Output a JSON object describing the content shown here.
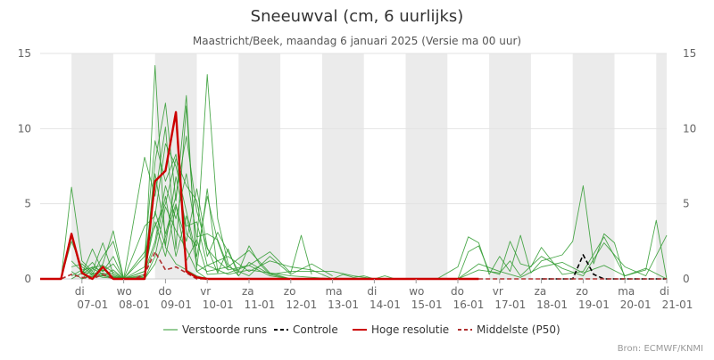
{
  "chart_data": {
    "type": "line",
    "title": "Sneeuwval (cm, 6 uurlijks)",
    "subtitle": "Maastricht/Beek, maandag 6 januari 2025 (Versie ma 00 uur)",
    "source": "Bron: ECMWF/KNMI",
    "ylim": [
      0,
      15
    ],
    "yticks": [
      0,
      5,
      10,
      15
    ],
    "x_unit": "days since 2025-01-06 00:00",
    "xlim": [
      0,
      15
    ],
    "xticks": [
      {
        "x": 1,
        "day": "di",
        "date": "07-01"
      },
      {
        "x": 2,
        "day": "wo",
        "date": "08-01"
      },
      {
        "x": 3,
        "day": "do",
        "date": "09-01"
      },
      {
        "x": 4,
        "day": "vr",
        "date": "10-01"
      },
      {
        "x": 5,
        "day": "za",
        "date": "11-01"
      },
      {
        "x": 6,
        "day": "zo",
        "date": "12-01"
      },
      {
        "x": 7,
        "day": "ma",
        "date": "13-01"
      },
      {
        "x": 8,
        "day": "di",
        "date": "14-01"
      },
      {
        "x": 9,
        "day": "wo",
        "date": "15-01"
      },
      {
        "x": 10,
        "day": "do",
        "date": "16-01"
      },
      {
        "x": 11,
        "day": "vr",
        "date": "17-01"
      },
      {
        "x": 12,
        "day": "za",
        "date": "18-01"
      },
      {
        "x": 13,
        "day": "zo",
        "date": "19-01"
      },
      {
        "x": 14,
        "day": "ma",
        "date": "20-01"
      },
      {
        "x": 15,
        "day": "di",
        "date": "21-01"
      }
    ],
    "shaded_bands": [
      [
        0.75,
        1.75
      ],
      [
        2.75,
        3.75
      ],
      [
        4.75,
        5.75
      ],
      [
        6.75,
        7.75
      ],
      [
        8.75,
        9.75
      ],
      [
        10.75,
        11.75
      ],
      [
        12.75,
        13.75
      ],
      [
        14.75,
        15
      ]
    ],
    "legend": [
      {
        "label": "Verstoorde runs",
        "color": "#2e9a2e",
        "style": "solid-thin"
      },
      {
        "label": "Controle",
        "color": "#000000",
        "style": "dashed"
      },
      {
        "label": "Hoge resolutie",
        "color": "#cc0000",
        "style": "solid-thick"
      },
      {
        "label": "Middelste (P50)",
        "color": "#b03030",
        "style": "dashed"
      }
    ],
    "series": [
      {
        "name": "Hoge resolutie",
        "color": "#cc0000",
        "dash": "",
        "width": 2.4,
        "x": [
          0,
          0.25,
          0.5,
          0.75,
          1,
          1.25,
          1.5,
          1.75,
          2,
          2.25,
          2.5,
          2.75,
          3,
          3.25,
          3.5,
          3.75,
          4,
          4.25,
          4.5,
          5,
          6,
          7,
          8,
          9,
          10,
          10.5
        ],
        "y": [
          0,
          0,
          0,
          3,
          0.4,
          0,
          0.8,
          0,
          0,
          0,
          0,
          6.5,
          7.2,
          11.1,
          0.5,
          0.1,
          0,
          0,
          0,
          0,
          0,
          0,
          0,
          0,
          0,
          0
        ]
      },
      {
        "name": "Middelste (P50)",
        "color": "#b03030",
        "dash": "5,3",
        "width": 1.6,
        "x": [
          0,
          0.25,
          0.5,
          0.75,
          1,
          1.25,
          1.5,
          1.75,
          2,
          2.25,
          2.5,
          2.75,
          3,
          3.25,
          3.5,
          3.75,
          4,
          4.5,
          5,
          5.5,
          6,
          7,
          8,
          9,
          10,
          11,
          12,
          13,
          14,
          15
        ],
        "y": [
          0,
          0,
          0,
          0.3,
          0.1,
          0,
          0.3,
          0,
          0,
          0,
          0.3,
          1.8,
          0.6,
          0.8,
          0.4,
          0,
          0,
          0,
          0,
          0,
          0,
          0,
          0,
          0,
          0,
          0,
          0,
          0,
          0,
          0
        ]
      },
      {
        "name": "Controle",
        "color": "#000000",
        "dash": "5,3",
        "width": 1.6,
        "x": [
          12,
          12.5,
          12.75,
          13,
          13.25,
          13.5,
          14,
          15
        ],
        "y": [
          0,
          0,
          0,
          1.6,
          0.3,
          0,
          0,
          0
        ]
      }
    ],
    "ensemble": [
      {
        "x": [
          0.5,
          0.75,
          1,
          1.25,
          1.5,
          1.75,
          2,
          2.25,
          2.5,
          2.75,
          3,
          3.25,
          3.5,
          3.75,
          4
        ],
        "y": [
          0,
          6.1,
          1.2,
          0.5,
          2.4,
          0.3,
          0,
          0,
          0.2,
          14.2,
          2.1,
          1.0,
          0.6,
          0.2,
          0
        ]
      },
      {
        "x": [
          0.5,
          0.75,
          1,
          1.25,
          1.5,
          1.75,
          2,
          2.5,
          2.75,
          3,
          3.25,
          3.5,
          3.75,
          4
        ],
        "y": [
          0,
          2.5,
          0.8,
          0.3,
          1.5,
          2.5,
          0,
          0.1,
          7.8,
          11.7,
          5.2,
          12.2,
          0.5,
          0
        ]
      },
      {
        "x": [
          0.75,
          1,
          1.25,
          1.5,
          1.75,
          2,
          2.5,
          2.75,
          3,
          3.25,
          3.5,
          3.75,
          4,
          4.25,
          4.5,
          4.75
        ],
        "y": [
          1.2,
          0.5,
          0,
          1.0,
          3.2,
          0,
          1.5,
          9.2,
          6.5,
          8.3,
          3.0,
          2.2,
          13.6,
          4.0,
          1.0,
          0.2
        ]
      },
      {
        "x": [
          0.75,
          1,
          1.25,
          1.5,
          1.75,
          2,
          2.5,
          2.75,
          3,
          3.25,
          3.5,
          3.75,
          4,
          4.25
        ],
        "y": [
          0.8,
          1.0,
          0.4,
          0.2,
          0.6,
          0,
          8.1,
          5.5,
          10.1,
          2.0,
          11.5,
          0.8,
          6.0,
          0.5
        ]
      },
      {
        "x": [
          0.75,
          1,
          1.25,
          1.5,
          1.75,
          2,
          2.5,
          2.75,
          3,
          3.25,
          3.5,
          3.75,
          4,
          4.25,
          4.5
        ],
        "y": [
          2.8,
          0.3,
          2.0,
          0.5,
          1.0,
          0,
          3.5,
          4.2,
          9.0,
          7.5,
          4.5,
          1.5,
          5.5,
          2.5,
          0.6
        ]
      },
      {
        "x": [
          0.75,
          1,
          1.25,
          1.5,
          2,
          2.5,
          2.75,
          3,
          3.25,
          3.5,
          3.75,
          4,
          4.25,
          4.5,
          5,
          5.5,
          6
        ],
        "y": [
          0.5,
          0,
          0.7,
          0.3,
          0,
          0.5,
          2.5,
          6.2,
          4.0,
          7.0,
          2.8,
          3.0,
          2.6,
          0.8,
          1.9,
          0.4,
          0
        ]
      },
      {
        "x": [
          0.75,
          1,
          1.5,
          2,
          2.5,
          2.75,
          3,
          3.25,
          3.5,
          3.75,
          4,
          4.25,
          4.75,
          5,
          5.25,
          5.5,
          6
        ],
        "y": [
          0.2,
          0.6,
          0.9,
          0,
          1.8,
          3.5,
          5.0,
          8.0,
          6.2,
          5.2,
          1.5,
          3.1,
          0.5,
          2.2,
          1.0,
          0.3,
          0
        ]
      },
      {
        "x": [
          0.75,
          1,
          1.25,
          1.5,
          2,
          2.5,
          2.75,
          3,
          3.25,
          3.5,
          3.75,
          4,
          4.25,
          4.5,
          5,
          5.5,
          6,
          6.25,
          6.5
        ],
        "y": [
          0,
          0.4,
          1.1,
          0.2,
          0,
          0.8,
          7.0,
          3.0,
          5.5,
          9.5,
          4.5,
          2.0,
          1.2,
          0.6,
          0.9,
          1.8,
          0.4,
          2.9,
          0.3
        ]
      },
      {
        "x": [
          1,
          1.25,
          1.5,
          1.75,
          2,
          2.5,
          2.75,
          3,
          3.25,
          3.5,
          3.75,
          4,
          4.5,
          5,
          5.5,
          6,
          6.5,
          7
        ],
        "y": [
          0.3,
          0.8,
          0.5,
          1.5,
          0,
          0.2,
          4.5,
          2.2,
          6.8,
          3.5,
          3.8,
          0.9,
          1.5,
          0.5,
          1.2,
          0.8,
          0.6,
          0
        ]
      },
      {
        "x": [
          1,
          1.5,
          2,
          2.5,
          2.75,
          3,
          3.25,
          3.5,
          3.75,
          4,
          4.25,
          4.5,
          4.75,
          5,
          5.5,
          6,
          7,
          7.5,
          8
        ],
        "y": [
          0,
          0.4,
          0,
          0.5,
          3.8,
          1.5,
          4.8,
          2.5,
          6.0,
          2.1,
          0.4,
          2.0,
          0.2,
          1.1,
          0.3,
          0.5,
          0.5,
          0.2,
          0
        ]
      },
      {
        "x": [
          1,
          1.5,
          2,
          2.5,
          2.75,
          3,
          3.25,
          3.5,
          3.75,
          4,
          4.5,
          5,
          5.5,
          6,
          6.5,
          7
        ],
        "y": [
          0.1,
          0.2,
          0,
          0.3,
          2.2,
          5.5,
          1.5,
          4.2,
          1.0,
          0.5,
          0.8,
          0.2,
          1.5,
          0.3,
          1.0,
          0.2
        ]
      },
      {
        "x": [
          1,
          1.5,
          2,
          2.5,
          2.75,
          3,
          3.25,
          3.5,
          3.75,
          4,
          4.5,
          5,
          6,
          7,
          8
        ],
        "y": [
          0.5,
          0.1,
          0,
          0,
          1.5,
          4.8,
          3.2,
          2.0,
          0.5,
          0.9,
          0.3,
          0.6,
          0.2,
          0,
          0
        ]
      },
      {
        "x": [
          1,
          1.5,
          2,
          2.5,
          2.75,
          3,
          3.25,
          3.5,
          3.75,
          4,
          4.5,
          5,
          5.5,
          6
        ],
        "y": [
          0,
          0.6,
          0,
          0,
          1.0,
          2.8,
          5.0,
          1.2,
          2.6,
          0.3,
          0.4,
          0.9,
          0.2,
          0
        ]
      },
      {
        "x": [
          9.5,
          10,
          10.25,
          10.5,
          10.75,
          11,
          11.25,
          11.5,
          11.75,
          12,
          12.5,
          12.75,
          13,
          13.25,
          13.5,
          13.75,
          14
        ],
        "y": [
          0,
          0.8,
          2.8,
          2.4,
          0.3,
          1.5,
          0.5,
          2.9,
          0.4,
          1.2,
          1.6,
          2.5,
          6.2,
          1.0,
          3.0,
          2.4,
          0
        ]
      },
      {
        "x": [
          10,
          10.25,
          10.5,
          10.75,
          11,
          11.25,
          11.5,
          11.75,
          12,
          12.5,
          13,
          13.5,
          14,
          14.5,
          14.75,
          15
        ],
        "y": [
          0,
          1.8,
          2.2,
          0.5,
          0.3,
          2.5,
          1.0,
          0.8,
          2.1,
          0.3,
          0.5,
          2.8,
          0.2,
          0.6,
          3.9,
          0
        ]
      },
      {
        "x": [
          10,
          10.5,
          11,
          11.25,
          11.5,
          12,
          12.5,
          13,
          13.5,
          14,
          14.5,
          15
        ],
        "y": [
          0,
          0.6,
          0.4,
          1.2,
          0.2,
          1.5,
          0.7,
          0.2,
          2.4,
          0.8,
          0.2,
          2.9
        ]
      },
      {
        "x": [
          9.5,
          10,
          10.5,
          11,
          11.5,
          12,
          12.5,
          13,
          13.5,
          14,
          14.5,
          15
        ],
        "y": [
          0,
          0,
          1.0,
          0.5,
          0.1,
          0.8,
          1.1,
          0.4,
          0.9,
          0.2,
          0.7,
          0
        ]
      },
      {
        "x": [
          7,
          7.25,
          7.5,
          7.75,
          8,
          8.25,
          8.5,
          9
        ],
        "y": [
          0,
          0.3,
          0.1,
          0.2,
          0,
          0.2,
          0,
          0
        ]
      }
    ]
  }
}
